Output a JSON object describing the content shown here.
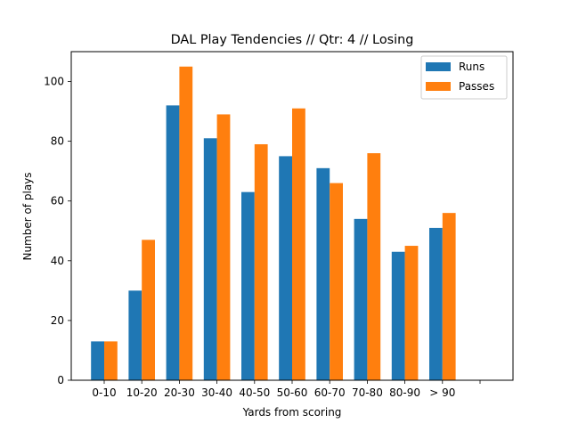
{
  "chart_data": {
    "type": "bar",
    "title": "DAL Play Tendencies // Qtr: 4 // Losing",
    "xlabel": "Yards from scoring",
    "ylabel": "Number of plays",
    "categories": [
      "0-10",
      "10-20",
      "20-30",
      "30-40",
      "40-50",
      "50-60",
      "60-70",
      "70-80",
      "80-90",
      "> 90",
      ""
    ],
    "series": [
      {
        "name": "Runs",
        "color": "#1f77b4",
        "values": [
          13,
          30,
          92,
          81,
          63,
          75,
          71,
          54,
          43,
          51,
          0
        ]
      },
      {
        "name": "Passes",
        "color": "#ff7f0e",
        "values": [
          13,
          47,
          105,
          89,
          79,
          91,
          66,
          76,
          45,
          56,
          0
        ]
      }
    ],
    "ylim": [
      0,
      110
    ],
    "yticks": [
      0,
      20,
      40,
      60,
      80,
      100
    ],
    "legend_position": "top-right",
    "grid": false
  }
}
